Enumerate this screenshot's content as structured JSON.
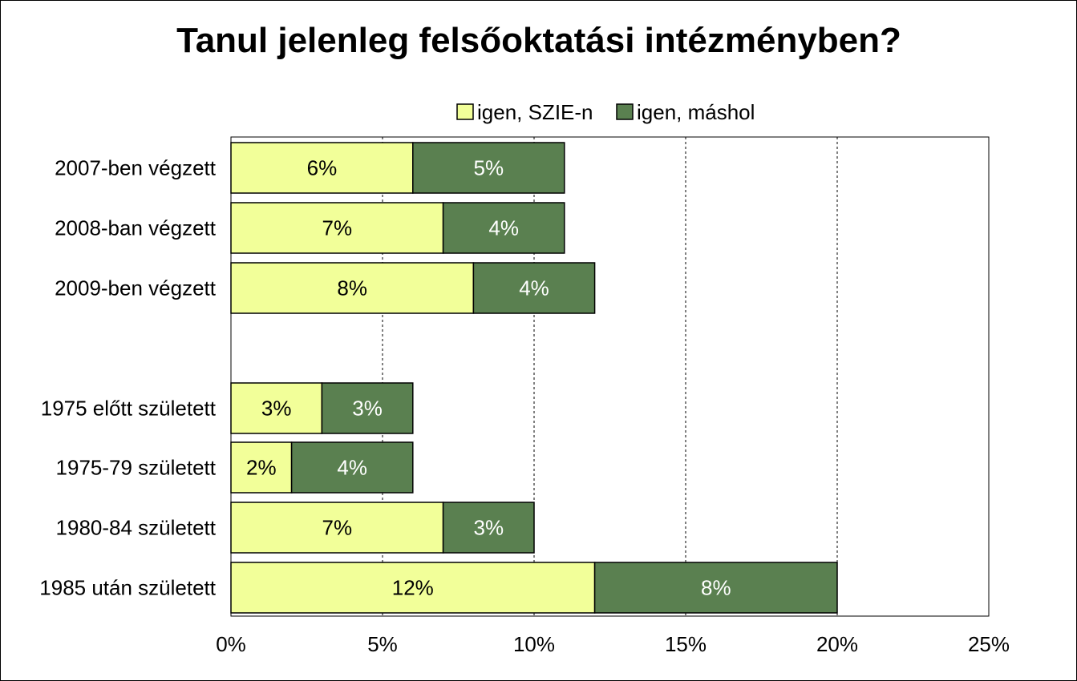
{
  "chart_data": {
    "type": "bar",
    "orientation": "horizontal",
    "stacked": true,
    "title": "Tanul jelenleg felsőoktatási intézményben?",
    "categories": [
      "2007-ben végzett",
      "2008-ban végzett",
      "2009-ben végzett",
      "",
      "1975 előtt született",
      "1975-79 született",
      "1980-84 született",
      "1985 után született"
    ],
    "series": [
      {
        "name": "igen, SZIE-n",
        "color": "#f2ff99",
        "values": [
          6,
          7,
          8,
          null,
          3,
          2,
          7,
          12
        ],
        "labels": [
          "6%",
          "7%",
          "8%",
          "",
          "3%",
          "2%",
          "7%",
          "12%"
        ]
      },
      {
        "name": "igen, máshol",
        "color": "#5a8050",
        "values": [
          5,
          4,
          4,
          null,
          3,
          4,
          3,
          8
        ],
        "labels": [
          "5%",
          "4%",
          "4%",
          "",
          "3%",
          "4%",
          "3%",
          "8%"
        ]
      }
    ],
    "xlim": [
      0,
      25
    ],
    "xticks": [
      0,
      5,
      10,
      15,
      20,
      25
    ],
    "xtick_labels": [
      "0%",
      "5%",
      "10%",
      "15%",
      "20%",
      "25%"
    ],
    "grid": "vertical-dashed",
    "legend_position": "top-center"
  }
}
